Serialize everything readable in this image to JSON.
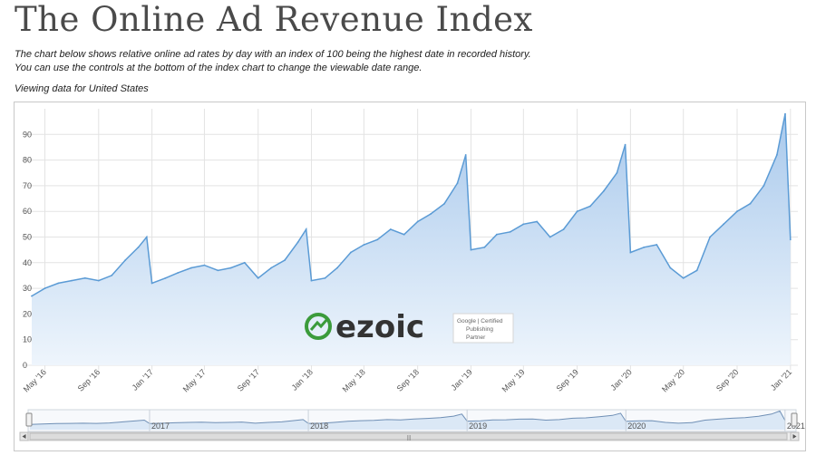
{
  "header": {
    "title": "The Online Ad Revenue Index",
    "description_line1": "The chart below shows relative online ad rates by day with an index of 100 being the highest date in recorded history.",
    "description_line2": "You can use the controls at the bottom of the index chart to change the viewable date range.",
    "viewing": "Viewing data for United States"
  },
  "watermark": {
    "brand": "ezoic",
    "badge_line1": "Google | Certified",
    "badge_line2": "Publishing",
    "badge_line3": "Partner",
    "brand_color": "#3b9b3b"
  },
  "navigator": {
    "years": [
      "2017",
      "2018",
      "2019",
      "2020",
      "2021"
    ],
    "scroll_grip": "|||"
  },
  "colors": {
    "line": "#5b9bd5",
    "fill_top": "#a9c9ec",
    "fill_bottom": "#eef5fc",
    "grid": "#e3e3e3"
  },
  "chart_data": {
    "type": "area",
    "title": "",
    "xlabel": "",
    "ylabel": "",
    "ylim": [
      0,
      100
    ],
    "yticks": [
      0,
      10,
      20,
      30,
      40,
      50,
      60,
      70,
      80,
      90
    ],
    "grid": true,
    "xticks": [
      "May '16",
      "Sep '16",
      "Jan '17",
      "May '17",
      "Sep '17",
      "Jan '18",
      "May '18",
      "Sep '18",
      "Jan '19",
      "May '19",
      "Sep '19",
      "Jan '20",
      "May '20",
      "Sep '20",
      "Jan '21"
    ],
    "series": [
      {
        "x": [
          "2016-04",
          "2016-05",
          "2016-06",
          "2016-07",
          "2016-08",
          "2016-09",
          "2016-10",
          "2016-11",
          "2016-12",
          "2016-12-20",
          "2017-01",
          "2017-02",
          "2017-03",
          "2017-04",
          "2017-05",
          "2017-06",
          "2017-07",
          "2017-08",
          "2017-09",
          "2017-10",
          "2017-11",
          "2017-12",
          "2017-12-20",
          "2018-01",
          "2018-02",
          "2018-03",
          "2018-04",
          "2018-05",
          "2018-06",
          "2018-07",
          "2018-08",
          "2018-09",
          "2018-10",
          "2018-11",
          "2018-12",
          "2018-12-20",
          "2019-01",
          "2019-02",
          "2019-03",
          "2019-04",
          "2019-05",
          "2019-06",
          "2019-07",
          "2019-08",
          "2019-09",
          "2019-10",
          "2019-11",
          "2019-12",
          "2019-12-20",
          "2020-01",
          "2020-02",
          "2020-03",
          "2020-04",
          "2020-05",
          "2020-06",
          "2020-07",
          "2020-08",
          "2020-09",
          "2020-10",
          "2020-11",
          "2020-12",
          "2020-12-20",
          "2021-01"
        ],
        "values": [
          27,
          30,
          32,
          33,
          34,
          33,
          35,
          41,
          46,
          50,
          32,
          34,
          36,
          38,
          39,
          37,
          38,
          40,
          34,
          38,
          41,
          48,
          53,
          33,
          34,
          38,
          44,
          47,
          49,
          53,
          51,
          56,
          59,
          63,
          71,
          82,
          45,
          46,
          51,
          52,
          55,
          56,
          50,
          53,
          60,
          62,
          68,
          75,
          86,
          44,
          46,
          47,
          38,
          34,
          37,
          50,
          55,
          60,
          63,
          70,
          82,
          98,
          49
        ]
      }
    ]
  }
}
